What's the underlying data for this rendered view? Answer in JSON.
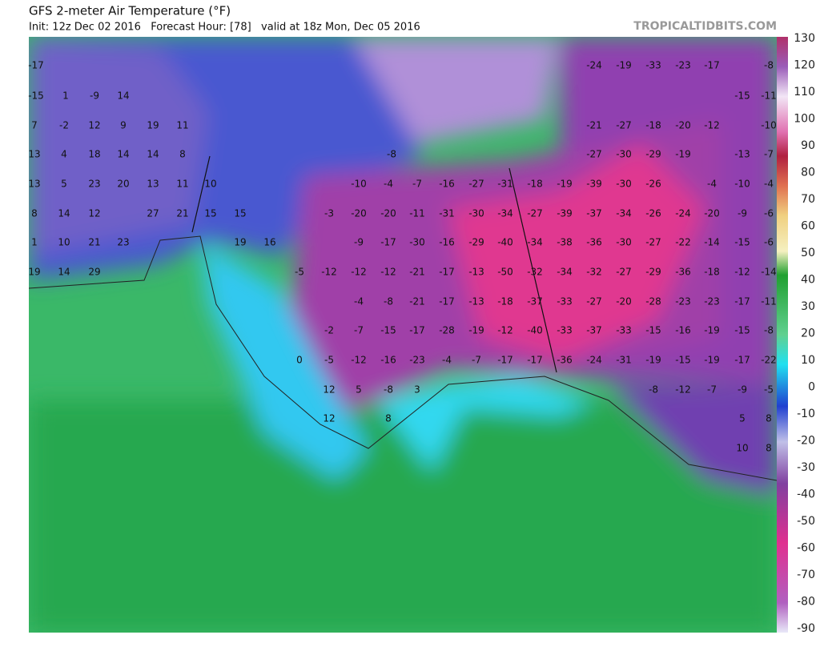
{
  "header": {
    "title": "GFS 2-meter Air Temperature (°F)",
    "subtitle": "Init: 12z Dec 02 2016   Forecast Hour: [78]   valid at 18z Mon, Dec 05 2016",
    "site": "TROPICALTIDBITS.COM"
  },
  "map": {
    "rows": [
      [
        -17,
        -24,
        -19,
        -33,
        -23,
        -17,
        -8
      ],
      [
        -15,
        1,
        -9,
        14,
        -15,
        -11
      ],
      [
        7,
        -2,
        12,
        9,
        19,
        11,
        -21,
        -27,
        -18,
        -20,
        -12,
        -10
      ],
      [
        13,
        4,
        18,
        14,
        14,
        8,
        -8,
        -27,
        -30,
        -29,
        -19,
        -13,
        -7
      ],
      [
        13,
        5,
        23,
        20,
        13,
        11,
        10,
        -10,
        -4,
        -7,
        -16,
        -27,
        -31,
        -18,
        -19,
        -39,
        -30,
        -26,
        -4,
        -10,
        -4
      ],
      [
        8,
        14,
        12,
        27,
        21,
        15,
        15,
        -3,
        -20,
        -20,
        -11,
        -31,
        -30,
        -34,
        -27,
        -39,
        -37,
        -34,
        -26,
        -24,
        -20,
        -9,
        -6
      ],
      [
        1,
        10,
        21,
        23,
        19,
        16,
        -9,
        -17,
        -30,
        -16,
        -29,
        -40,
        -34,
        -38,
        -36,
        -30,
        -27,
        -22,
        -14,
        -15,
        -6
      ],
      [
        19,
        14,
        29,
        -5,
        -12,
        -12,
        -12,
        -21,
        -17,
        -13,
        -50,
        -32,
        -34,
        -32,
        -27,
        -29,
        -36,
        -18,
        -12,
        -14
      ],
      [
        -4,
        -8,
        -21,
        -17,
        -13,
        -18,
        -37,
        -33,
        -27,
        -20,
        -28,
        -23,
        -23,
        -17,
        -11
      ],
      [
        -2,
        -7,
        -15,
        -17,
        -28,
        -19,
        -12,
        -40,
        -33,
        -37,
        -33,
        -15,
        -16,
        -19,
        -15,
        -8
      ],
      [
        0,
        -5,
        -12,
        -16,
        -23,
        -4,
        -7,
        -17,
        -17,
        -36,
        -24,
        -31,
        -19,
        -15,
        -19,
        -17,
        -22
      ],
      [
        12,
        5,
        -8,
        3,
        -8,
        -12,
        -7,
        -9,
        -5
      ],
      [
        12,
        8,
        5,
        8
      ],
      [
        10,
        8
      ]
    ]
  },
  "colorbar": {
    "ticks": [
      130,
      120,
      110,
      100,
      90,
      80,
      70,
      60,
      50,
      40,
      30,
      20,
      10,
      0,
      -10,
      -20,
      -30,
      -40,
      -50,
      -60,
      -70,
      -80,
      -90
    ]
  }
}
